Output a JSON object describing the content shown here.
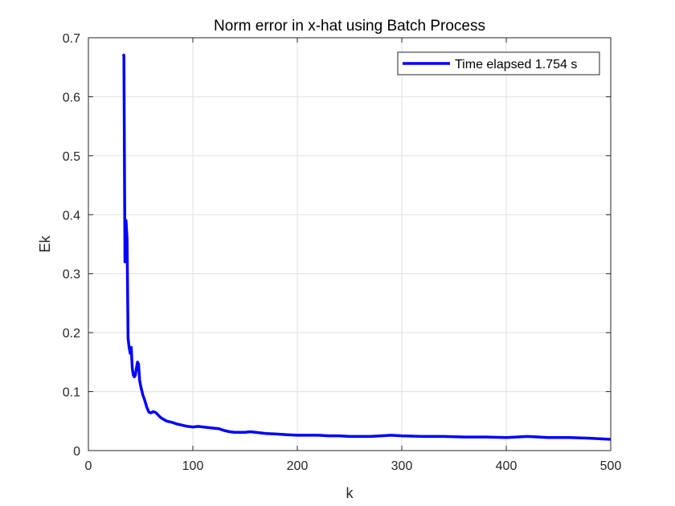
{
  "chart_data": {
    "type": "line",
    "title": "Norm error in x-hat using Batch Process",
    "xlabel": "k",
    "ylabel": "Ek",
    "xlim": [
      0,
      500
    ],
    "ylim": [
      0,
      0.7
    ],
    "x_ticks": [
      0,
      100,
      200,
      300,
      400,
      500
    ],
    "y_ticks": [
      0,
      0.1,
      0.2,
      0.3,
      0.4,
      0.5,
      0.6,
      0.7
    ],
    "grid": true,
    "legend_position": "top-right",
    "series": [
      {
        "name": "Time elapsed 1.754 s",
        "color": "#0000ff",
        "x": [
          33,
          34,
          35,
          36,
          37,
          38,
          39,
          40,
          41,
          42,
          43,
          44,
          45,
          46,
          47,
          48,
          49,
          50,
          52,
          54,
          56,
          58,
          60,
          62,
          64,
          66,
          68,
          70,
          75,
          80,
          85,
          90,
          95,
          100,
          105,
          110,
          115,
          120,
          125,
          130,
          135,
          140,
          145,
          150,
          155,
          160,
          170,
          180,
          190,
          200,
          210,
          220,
          230,
          240,
          250,
          260,
          270,
          280,
          290,
          300,
          320,
          340,
          360,
          380,
          400,
          410,
          420,
          440,
          460,
          480,
          500
        ],
        "y": [
          0.672,
          0.67,
          0.32,
          0.39,
          0.36,
          0.19,
          0.175,
          0.165,
          0.175,
          0.14,
          0.128,
          0.125,
          0.128,
          0.14,
          0.15,
          0.147,
          0.12,
          0.11,
          0.095,
          0.085,
          0.073,
          0.065,
          0.064,
          0.066,
          0.065,
          0.062,
          0.058,
          0.055,
          0.05,
          0.048,
          0.045,
          0.043,
          0.041,
          0.04,
          0.041,
          0.04,
          0.039,
          0.038,
          0.037,
          0.034,
          0.032,
          0.031,
          0.031,
          0.031,
          0.032,
          0.031,
          0.029,
          0.028,
          0.027,
          0.026,
          0.026,
          0.026,
          0.025,
          0.025,
          0.024,
          0.024,
          0.024,
          0.025,
          0.026,
          0.025,
          0.024,
          0.024,
          0.023,
          0.023,
          0.022,
          0.023,
          0.024,
          0.022,
          0.022,
          0.021,
          0.019
        ]
      }
    ]
  }
}
